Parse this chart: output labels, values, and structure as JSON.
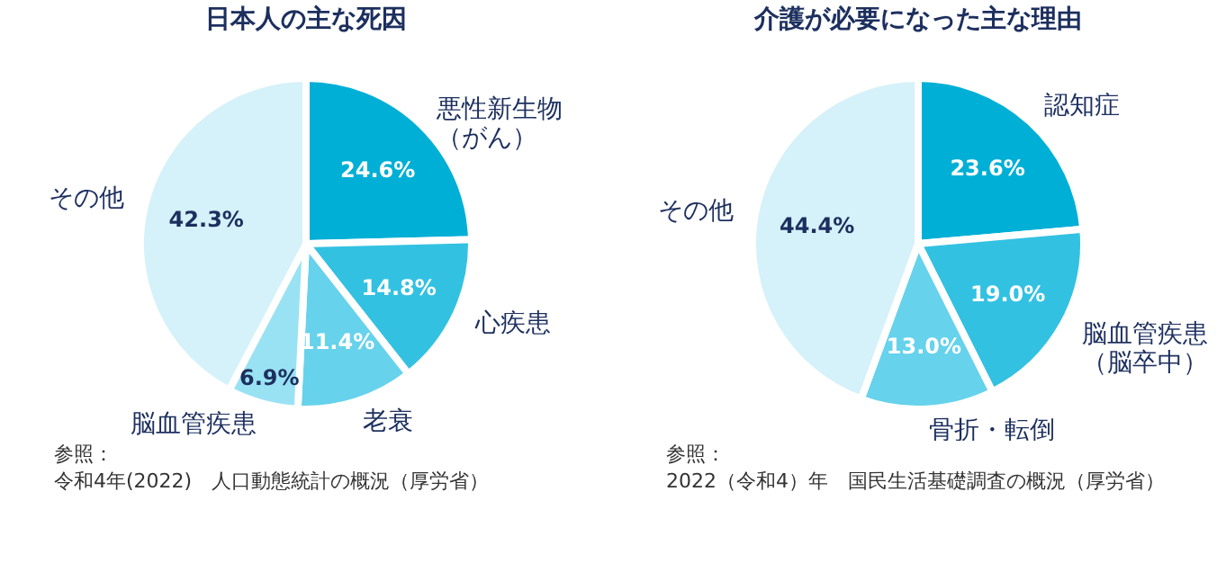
{
  "chart_data": [
    {
      "type": "pie",
      "title": "日本人の主な死因",
      "categories": [
        "悪性新生物（がん）",
        "心疾患",
        "老衰",
        "脳血管疾患",
        "その他"
      ],
      "values": [
        24.6,
        14.8,
        11.4,
        6.9,
        42.3
      ],
      "colors": [
        "#00afd6",
        "#33c1e2",
        "#66d2ec",
        "#99e2f3",
        "#d5f1f9"
      ],
      "value_labels": [
        "24.6%",
        "14.8%",
        "11.4%",
        "6.9%",
        "42.3%"
      ],
      "legend": false,
      "annotations": [
        "参照：",
        "令和4年(2022)　人口動態統計の概況（厚労省）"
      ]
    },
    {
      "type": "pie",
      "title": "介護が必要になった主な理由",
      "categories": [
        "認知症",
        "脳血管疾患（脳卒中）",
        "骨折・転倒",
        "その他"
      ],
      "values": [
        23.6,
        19.0,
        13.0,
        44.4
      ],
      "colors": [
        "#00afd6",
        "#33c1e2",
        "#66d2ec",
        "#d5f1f9"
      ],
      "value_labels": [
        "23.6%",
        "19.0%",
        "13.0%",
        "44.4%"
      ],
      "legend": false,
      "annotations": [
        "参照：",
        "2022（令和4）年　国民生活基礎調査の概況（厚労省）"
      ]
    }
  ]
}
